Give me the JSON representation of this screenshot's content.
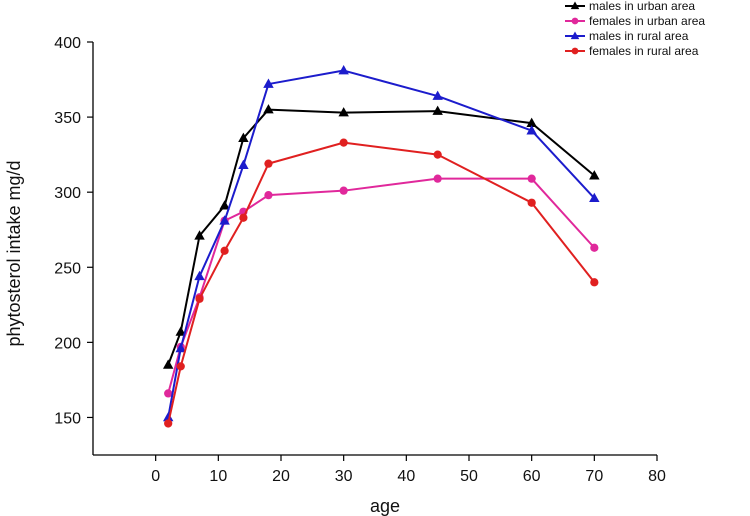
{
  "chart_data": {
    "type": "line",
    "xlabel": "age",
    "ylabel": "phytosterol intake mg/d",
    "xlim": [
      -10,
      80
    ],
    "ylim": [
      125,
      400
    ],
    "xticks": [
      0,
      10,
      20,
      30,
      40,
      50,
      60,
      70,
      80
    ],
    "yticks": [
      150,
      200,
      250,
      300,
      350,
      400
    ],
    "grid": false,
    "legend_position": "top-right",
    "x": [
      2,
      4,
      7,
      11,
      14,
      18,
      30,
      45,
      60,
      70
    ],
    "series": [
      {
        "name": "males in urban area",
        "color": "#000000",
        "marker": "triangle",
        "values": [
          185,
          207,
          271,
          291,
          336,
          355,
          353,
          354,
          346,
          311
        ]
      },
      {
        "name": "females in urban area",
        "color": "#e0289b",
        "marker": "circle",
        "values": [
          166,
          197,
          230,
          281,
          287,
          298,
          301,
          309,
          309,
          263
        ]
      },
      {
        "name": "males in rural area",
        "color": "#1c1ccc",
        "marker": "triangle",
        "values": [
          150,
          196,
          244,
          281,
          318,
          372,
          381,
          364,
          341,
          296
        ]
      },
      {
        "name": "females in rural area",
        "color": "#e02020",
        "marker": "circle",
        "values": [
          146,
          184,
          229,
          261,
          283,
          319,
          333,
          325,
          293,
          240
        ]
      }
    ]
  }
}
